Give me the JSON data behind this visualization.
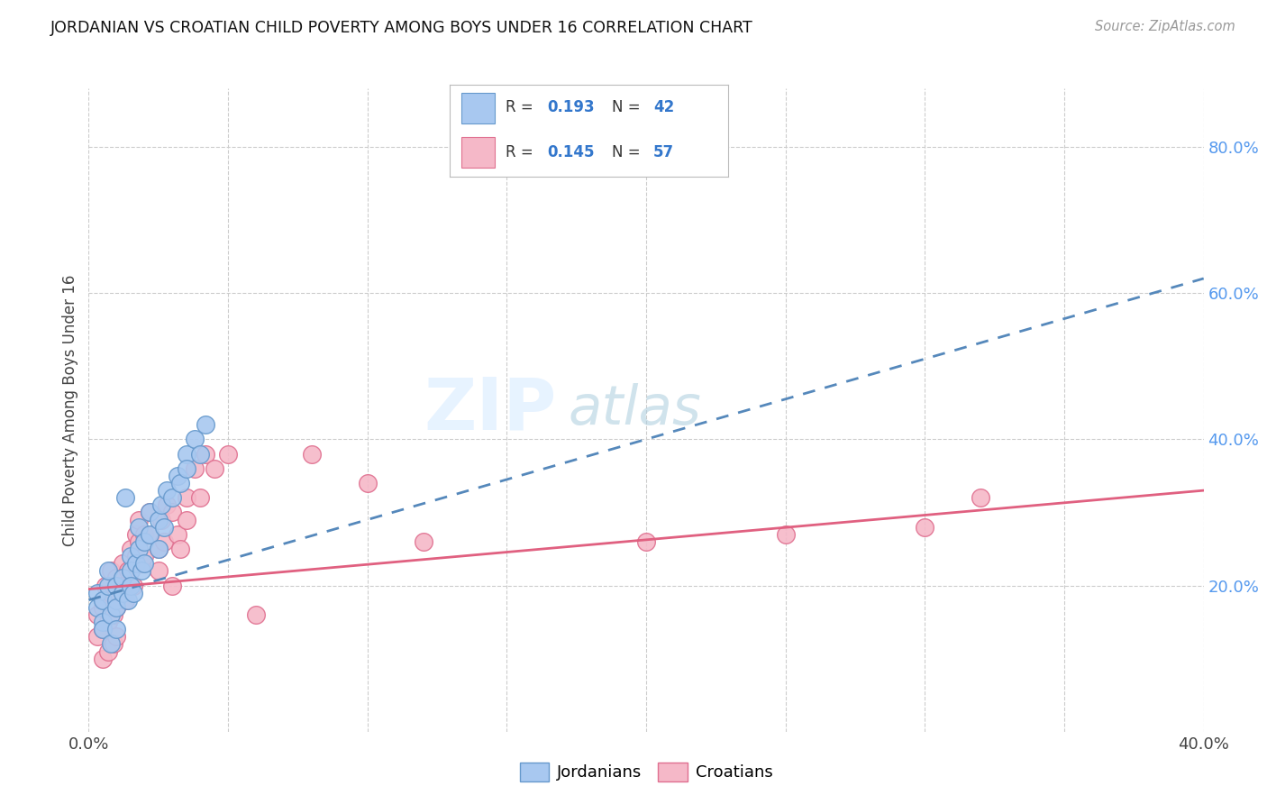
{
  "title": "JORDANIAN VS CROATIAN CHILD POVERTY AMONG BOYS UNDER 16 CORRELATION CHART",
  "source": "Source: ZipAtlas.com",
  "ylabel": "Child Poverty Among Boys Under 16",
  "xlim": [
    0.0,
    0.4
  ],
  "ylim": [
    0.0,
    0.88
  ],
  "xticks": [
    0.0,
    0.05,
    0.1,
    0.15,
    0.2,
    0.25,
    0.3,
    0.35,
    0.4
  ],
  "yticks_right": [
    0.2,
    0.4,
    0.6,
    0.8
  ],
  "ytickslabels_right": [
    "20.0%",
    "40.0%",
    "60.0%",
    "80.0%"
  ],
  "jordanians_color": "#A8C8F0",
  "croatians_color": "#F5B8C8",
  "jordanians_edge": "#6699CC",
  "croatians_edge": "#E07090",
  "trend_jordanians_color": "#5588BB",
  "trend_croatians_color": "#E06080",
  "R_jordanians": 0.193,
  "N_jordanians": 42,
  "R_croatians": 0.145,
  "N_croatians": 57,
  "legend_label_jordanians": "Jordanians",
  "legend_label_croatians": "Croatians",
  "watermark_zip": "ZIP",
  "watermark_atlas": "atlas",
  "background_color": "#FFFFFF",
  "grid_color": "#CCCCCC",
  "jordanians_x": [
    0.003,
    0.003,
    0.005,
    0.005,
    0.005,
    0.007,
    0.007,
    0.008,
    0.008,
    0.01,
    0.01,
    0.01,
    0.01,
    0.012,
    0.012,
    0.013,
    0.014,
    0.015,
    0.015,
    0.015,
    0.016,
    0.017,
    0.018,
    0.018,
    0.019,
    0.02,
    0.02,
    0.022,
    0.022,
    0.025,
    0.025,
    0.026,
    0.027,
    0.028,
    0.03,
    0.032,
    0.033,
    0.035,
    0.035,
    0.038,
    0.04,
    0.042
  ],
  "jordanians_y": [
    0.19,
    0.17,
    0.18,
    0.15,
    0.14,
    0.2,
    0.22,
    0.16,
    0.12,
    0.2,
    0.18,
    0.17,
    0.14,
    0.21,
    0.19,
    0.32,
    0.18,
    0.24,
    0.22,
    0.2,
    0.19,
    0.23,
    0.28,
    0.25,
    0.22,
    0.26,
    0.23,
    0.3,
    0.27,
    0.29,
    0.25,
    0.31,
    0.28,
    0.33,
    0.32,
    0.35,
    0.34,
    0.38,
    0.36,
    0.4,
    0.38,
    0.42
  ],
  "croatians_x": [
    0.003,
    0.003,
    0.005,
    0.005,
    0.005,
    0.006,
    0.006,
    0.007,
    0.007,
    0.008,
    0.008,
    0.009,
    0.009,
    0.01,
    0.01,
    0.01,
    0.01,
    0.012,
    0.012,
    0.013,
    0.014,
    0.015,
    0.015,
    0.016,
    0.017,
    0.017,
    0.018,
    0.018,
    0.019,
    0.02,
    0.02,
    0.022,
    0.022,
    0.025,
    0.025,
    0.026,
    0.027,
    0.028,
    0.03,
    0.03,
    0.032,
    0.033,
    0.035,
    0.035,
    0.038,
    0.04,
    0.042,
    0.045,
    0.05,
    0.06,
    0.08,
    0.1,
    0.12,
    0.2,
    0.25,
    0.3,
    0.32
  ],
  "croatians_y": [
    0.16,
    0.13,
    0.17,
    0.14,
    0.1,
    0.2,
    0.18,
    0.15,
    0.11,
    0.22,
    0.19,
    0.16,
    0.12,
    0.21,
    0.19,
    0.17,
    0.13,
    0.23,
    0.2,
    0.18,
    0.22,
    0.25,
    0.22,
    0.2,
    0.27,
    0.24,
    0.29,
    0.26,
    0.23,
    0.27,
    0.24,
    0.3,
    0.27,
    0.25,
    0.22,
    0.29,
    0.26,
    0.31,
    0.3,
    0.2,
    0.27,
    0.25,
    0.32,
    0.29,
    0.36,
    0.32,
    0.38,
    0.36,
    0.38,
    0.16,
    0.38,
    0.34,
    0.26,
    0.26,
    0.27,
    0.28,
    0.32
  ],
  "trend_jord_x0": 0.0,
  "trend_jord_y0": 0.18,
  "trend_jord_x1": 0.4,
  "trend_jord_y1": 0.62,
  "trend_croat_x0": 0.0,
  "trend_croat_y0": 0.195,
  "trend_croat_x1": 0.4,
  "trend_croat_y1": 0.33
}
